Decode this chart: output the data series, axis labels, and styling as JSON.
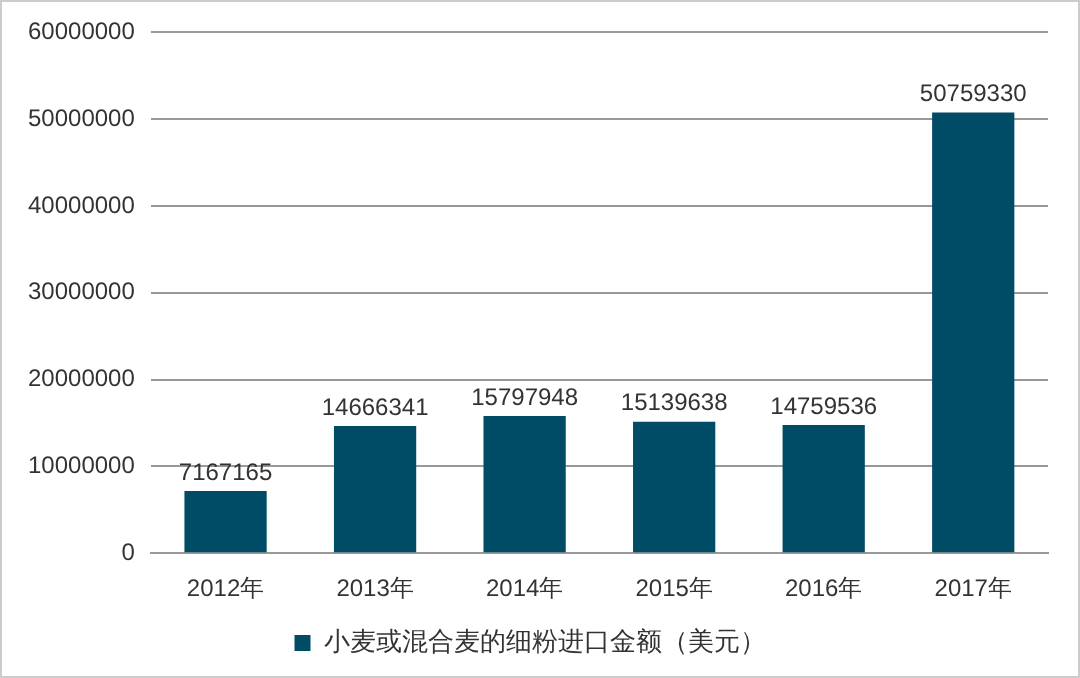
{
  "chart_data": {
    "type": "bar",
    "categories": [
      "2012年",
      "2013年",
      "2014年",
      "2015年",
      "2016年",
      "2017年"
    ],
    "series": [
      {
        "name": "小麦或混合麦的细粉进口金额（美元）",
        "color": "#004b66",
        "values": [
          7167165,
          14666341,
          15797948,
          15139638,
          14759536,
          50759330
        ]
      }
    ],
    "ylim": [
      0,
      60000000
    ],
    "yticks": [
      0,
      10000000,
      20000000,
      30000000,
      40000000,
      50000000,
      60000000
    ],
    "grid": "y",
    "legend": "bottom",
    "data_labels": true
  }
}
